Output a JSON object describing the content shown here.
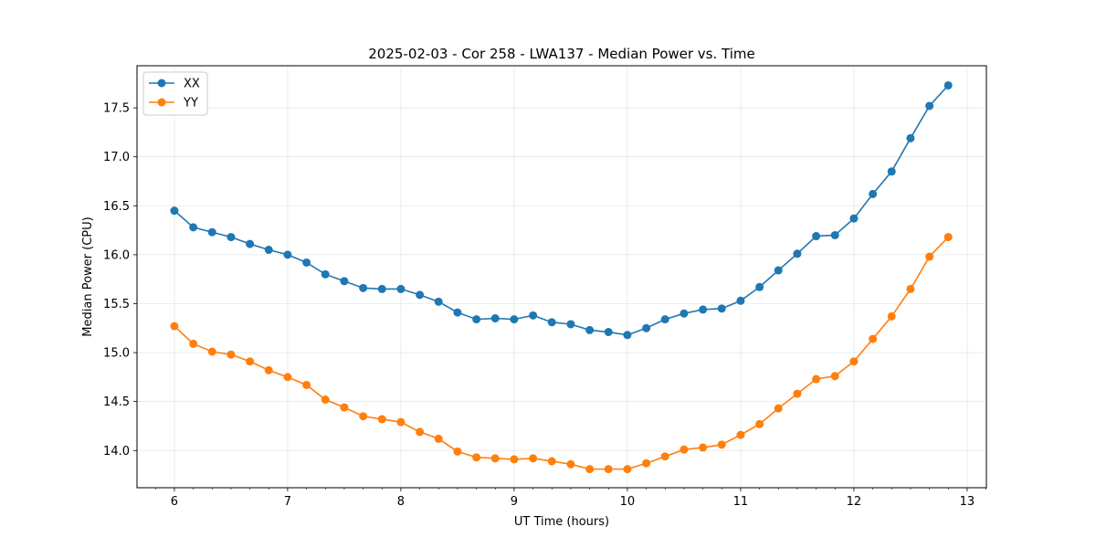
{
  "chart_data": {
    "type": "line",
    "title": "2025-02-03 - Cor 258 - LWA137 - Median Power vs. Time",
    "xlabel": "UT Time (hours)",
    "ylabel": "Median Power (CPU)",
    "xlim": [
      5.67,
      13.17
    ],
    "ylim": [
      13.62,
      17.93
    ],
    "xticks": [
      6,
      7,
      8,
      9,
      10,
      11,
      12,
      13
    ],
    "xtick_labels": [
      "6",
      "7",
      "8",
      "9",
      "10",
      "11",
      "12",
      "13"
    ],
    "yticks": [
      14.0,
      14.5,
      15.0,
      15.5,
      16.0,
      16.5,
      17.0,
      17.5
    ],
    "ytick_labels": [
      "14.0",
      "14.5",
      "15.0",
      "15.5",
      "16.0",
      "16.5",
      "17.0",
      "17.5"
    ],
    "grid": true,
    "legend_position": "top-left",
    "x": [
      6.0,
      6.167,
      6.333,
      6.5,
      6.667,
      6.833,
      7.0,
      7.167,
      7.333,
      7.5,
      7.667,
      7.833,
      8.0,
      8.167,
      8.333,
      8.5,
      8.667,
      8.833,
      9.0,
      9.167,
      9.333,
      9.5,
      9.667,
      9.833,
      10.0,
      10.167,
      10.333,
      10.5,
      10.667,
      10.833,
      11.0,
      11.167,
      11.333,
      11.5,
      11.667,
      11.833,
      12.0,
      12.167,
      12.333,
      12.5,
      12.667,
      12.833
    ],
    "series": [
      {
        "name": "XX",
        "color": "#1f77b4",
        "values": [
          16.45,
          16.28,
          16.23,
          16.18,
          16.11,
          16.05,
          16.0,
          15.92,
          15.8,
          15.73,
          15.66,
          15.65,
          15.65,
          15.59,
          15.52,
          15.41,
          15.34,
          15.35,
          15.34,
          15.38,
          15.31,
          15.29,
          15.23,
          15.21,
          15.18,
          15.25,
          15.34,
          15.4,
          15.44,
          15.45,
          15.53,
          15.67,
          15.84,
          16.01,
          16.19,
          16.2,
          16.37,
          16.62,
          16.85,
          17.19,
          17.52,
          17.73
        ]
      },
      {
        "name": "YY",
        "color": "#ff7f0e",
        "values": [
          15.27,
          15.09,
          15.01,
          14.98,
          14.91,
          14.82,
          14.75,
          14.67,
          14.52,
          14.44,
          14.35,
          14.32,
          14.29,
          14.19,
          14.12,
          13.99,
          13.93,
          13.92,
          13.91,
          13.92,
          13.89,
          13.86,
          13.81,
          13.81,
          13.81,
          13.87,
          13.94,
          14.01,
          14.03,
          14.06,
          14.16,
          14.27,
          14.43,
          14.58,
          14.73,
          14.76,
          14.91,
          15.14,
          15.37,
          15.65,
          15.98,
          16.18
        ]
      }
    ]
  }
}
